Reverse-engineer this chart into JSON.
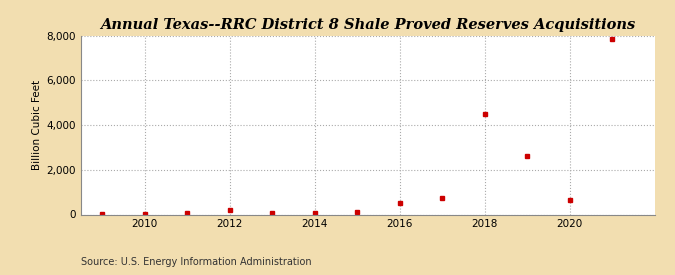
{
  "title": "Annual Texas--RRC District 8 Shale Proved Reserves Acquisitions",
  "ylabel": "Billion Cubic Feet",
  "source": "Source: U.S. Energy Information Administration",
  "background_color": "#f2deb0",
  "plot_background_color": "#ffffff",
  "marker_color": "#cc0000",
  "grid_color": "#aaaaaa",
  "years": [
    2009,
    2010,
    2011,
    2012,
    2013,
    2014,
    2015,
    2016,
    2017,
    2018,
    2019,
    2020,
    2021
  ],
  "values": [
    5,
    30,
    60,
    200,
    70,
    50,
    100,
    500,
    750,
    4500,
    2600,
    650,
    7850
  ],
  "ylim": [
    0,
    8000
  ],
  "yticks": [
    0,
    2000,
    4000,
    6000,
    8000
  ],
  "xlim": [
    2008.5,
    2022.0
  ],
  "xticks": [
    2010,
    2012,
    2014,
    2016,
    2018,
    2020
  ],
  "title_fontsize": 10.5,
  "label_fontsize": 7.5,
  "source_fontsize": 7
}
